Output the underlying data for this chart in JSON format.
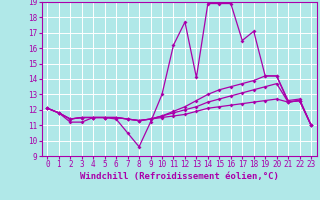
{
  "x": [
    0,
    1,
    2,
    3,
    4,
    5,
    6,
    7,
    8,
    9,
    10,
    11,
    12,
    13,
    14,
    15,
    16,
    17,
    18,
    19,
    20,
    21,
    22,
    23
  ],
  "line1": [
    12.1,
    11.8,
    11.2,
    11.2,
    11.5,
    11.5,
    11.4,
    10.5,
    9.6,
    11.2,
    13.0,
    16.2,
    17.7,
    14.1,
    18.9,
    18.9,
    18.9,
    16.5,
    17.1,
    14.2,
    14.2,
    12.6,
    12.7,
    11.0
  ],
  "line2": [
    12.1,
    11.8,
    11.4,
    11.5,
    11.5,
    11.5,
    11.5,
    11.4,
    11.3,
    11.4,
    11.5,
    11.6,
    11.7,
    11.9,
    12.1,
    12.2,
    12.3,
    12.4,
    12.5,
    12.6,
    12.7,
    12.5,
    12.6,
    11.0
  ],
  "line3": [
    12.1,
    11.8,
    11.4,
    11.5,
    11.5,
    11.5,
    11.5,
    11.4,
    11.3,
    11.4,
    11.6,
    11.8,
    12.0,
    12.2,
    12.5,
    12.7,
    12.9,
    13.1,
    13.3,
    13.5,
    13.7,
    12.5,
    12.6,
    11.0
  ],
  "line4": [
    12.1,
    11.8,
    11.4,
    11.5,
    11.5,
    11.5,
    11.5,
    11.4,
    11.3,
    11.4,
    11.6,
    11.9,
    12.2,
    12.6,
    13.0,
    13.3,
    13.5,
    13.7,
    13.9,
    14.2,
    14.2,
    12.5,
    12.6,
    11.0
  ],
  "line_color": "#aa00aa",
  "bg_color": "#b0e8e8",
  "grid_color": "#ffffff",
  "xlabel": "Windchill (Refroidissement éolien,°C)",
  "ylim": [
    9,
    19
  ],
  "xlim": [
    -0.5,
    23.5
  ],
  "yticks": [
    9,
    10,
    11,
    12,
    13,
    14,
    15,
    16,
    17,
    18,
    19
  ],
  "xticks": [
    0,
    1,
    2,
    3,
    4,
    5,
    6,
    7,
    8,
    9,
    10,
    11,
    12,
    13,
    14,
    15,
    16,
    17,
    18,
    19,
    20,
    21,
    22,
    23
  ],
  "marker": "D",
  "markersize": 2,
  "linewidth": 0.9,
  "xlabel_fontsize": 6.5,
  "tick_fontsize": 5.5
}
